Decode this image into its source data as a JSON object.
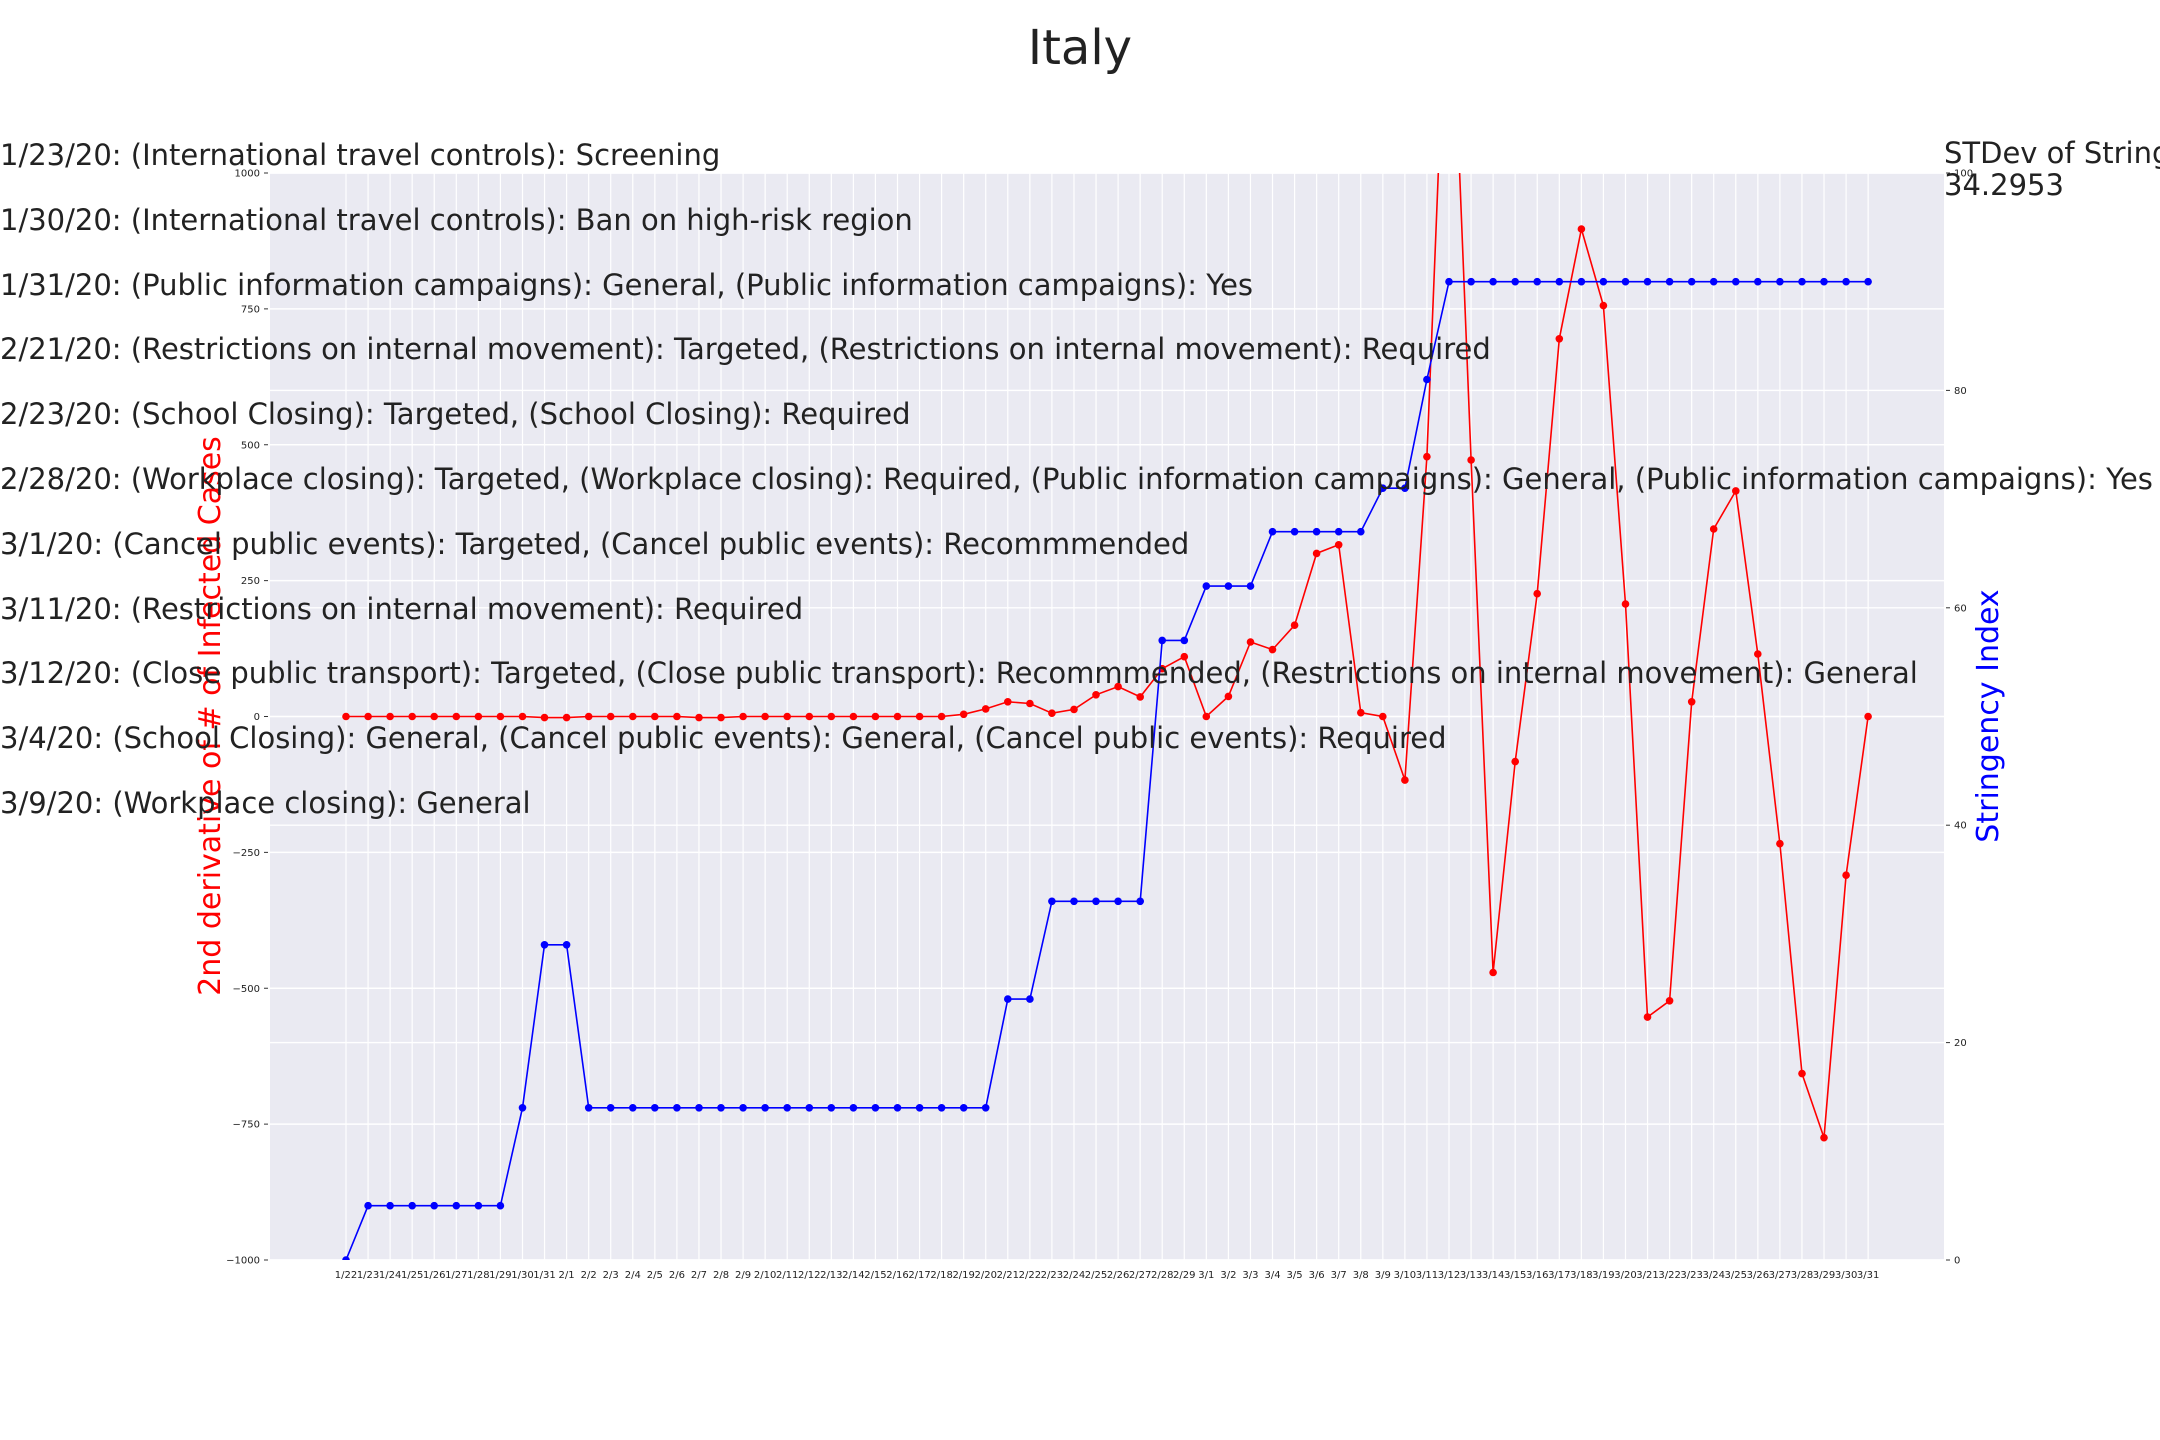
{
  "chart_data": {
    "type": "line",
    "title": "Italy",
    "categories": [
      "1/22",
      "1/23",
      "1/24",
      "1/25",
      "1/26",
      "1/27",
      "1/28",
      "1/29",
      "1/30",
      "1/31",
      "2/1",
      "2/2",
      "2/3",
      "2/4",
      "2/5",
      "2/6",
      "2/7",
      "2/8",
      "2/9",
      "2/10",
      "2/11",
      "2/12",
      "2/13",
      "2/14",
      "2/15",
      "2/16",
      "2/17",
      "2/18",
      "2/19",
      "2/20",
      "2/21",
      "2/22",
      "2/23",
      "2/24",
      "2/25",
      "2/26",
      "2/27",
      "2/28",
      "2/29",
      "3/1",
      "3/2",
      "3/3",
      "3/4",
      "3/5",
      "3/6",
      "3/7",
      "3/8",
      "3/9",
      "3/10",
      "3/11",
      "3/12",
      "3/13",
      "3/14",
      "3/15",
      "3/16",
      "3/17",
      "3/18",
      "3/19",
      "3/20",
      "3/21",
      "3/22",
      "3/23",
      "3/24",
      "3/25",
      "3/26",
      "3/27",
      "3/28",
      "3/29",
      "3/30",
      "3/31"
    ],
    "series": [
      {
        "name": "2nd derivative of # of Infected Cases",
        "axis": "left",
        "color": "#ff0000",
        "values": [
          0,
          0,
          0,
          0,
          0,
          0,
          0,
          0,
          0,
          -2,
          -2,
          0,
          0,
          0,
          0,
          0,
          -2,
          -2,
          0,
          0,
          0,
          0,
          0,
          0,
          0,
          0,
          0,
          0,
          4,
          14,
          27,
          24,
          6,
          13,
          40,
          55,
          36,
          88,
          110,
          0,
          37,
          137,
          123,
          168,
          300,
          316,
          7,
          0,
          -117,
          478,
          1490,
          472,
          -471,
          -83,
          226,
          695,
          897,
          756,
          207,
          -553,
          -523,
          27,
          345,
          415,
          115,
          -234,
          -657,
          -775,
          -292,
          0
        ],
        "markers_shown": [
          1,
          1,
          1,
          1,
          1,
          1,
          1,
          1,
          1,
          1,
          1,
          1,
          1,
          1,
          1,
          1,
          1,
          1,
          1,
          1,
          1,
          1,
          1,
          1,
          1,
          1,
          1,
          1,
          1,
          1,
          1,
          1,
          1,
          1,
          1,
          1,
          1,
          1,
          1,
          1,
          1,
          1,
          1,
          1,
          1,
          1,
          1,
          1,
          1,
          1,
          0,
          1,
          1,
          1,
          1,
          1,
          1,
          1,
          1,
          1,
          1,
          1,
          1,
          1,
          1,
          1,
          1,
          1,
          1,
          1
        ]
      },
      {
        "name": "Stringency Index",
        "axis": "right",
        "color": "#0000ff",
        "values": [
          0,
          5,
          5,
          5,
          5,
          5,
          5,
          5,
          14,
          29,
          29,
          14,
          14,
          14,
          14,
          14,
          14,
          14,
          14,
          14,
          14,
          14,
          14,
          14,
          14,
          14,
          14,
          14,
          14,
          14,
          24,
          24,
          33,
          33,
          33,
          33,
          33,
          57,
          57,
          62,
          62,
          62,
          67,
          67,
          67,
          67,
          67,
          71,
          71,
          81,
          90,
          90,
          90,
          90,
          90,
          90,
          90,
          90,
          90,
          90,
          90,
          90,
          90,
          90,
          90,
          90,
          90,
          90,
          90,
          90
        ]
      }
    ],
    "left_axis": {
      "label": "2nd derivative of # of Infected Cases",
      "ylim": [
        -1000,
        1000
      ],
      "ticks": [
        -1000,
        -750,
        -500,
        -250,
        0,
        250,
        500,
        750,
        1000
      ],
      "tick_labels": [
        "−1000",
        "−750",
        "−500",
        "−250",
        "0",
        "250",
        "500",
        "750",
        "1000"
      ]
    },
    "right_axis": {
      "label": "Stringency Index",
      "ylim": [
        0,
        100
      ],
      "ticks": [
        0,
        20,
        40,
        60,
        80,
        100
      ],
      "tick_labels": [
        "0",
        "20",
        "40",
        "60",
        "80",
        "100"
      ]
    },
    "grid": true,
    "background": "#eaeaf2",
    "stdev": {
      "label": "STDev of Stringe",
      "value": "34.2953"
    },
    "annotations": [
      "1/23/20: (International travel controls): Screening",
      "1/30/20: (International travel controls): Ban on high-risk region",
      "1/31/20: (Public information campaigns): General, (Public information campaigns): Yes",
      "2/21/20: (Restrictions on internal movement): Targeted, (Restrictions on internal movement): Required",
      "2/23/20: (School Closing): Targeted, (School Closing): Required",
      "2/28/20: (Workplace closing): Targeted, (Workplace closing): Required, (Public information campaigns): General, (Public information campaigns): Yes",
      "3/1/20: (Cancel public events): Targeted, (Cancel public events): Recommmended",
      "3/11/20: (Restrictions on internal movement): Required",
      "3/12/20: (Close public transport): Targeted, (Close public transport): Recommmended, (Restrictions on internal movement): General",
      "3/4/20: (School Closing): General, (Cancel public events): General, (Cancel public events): Required",
      "3/9/20: (Workplace closing): General"
    ]
  }
}
